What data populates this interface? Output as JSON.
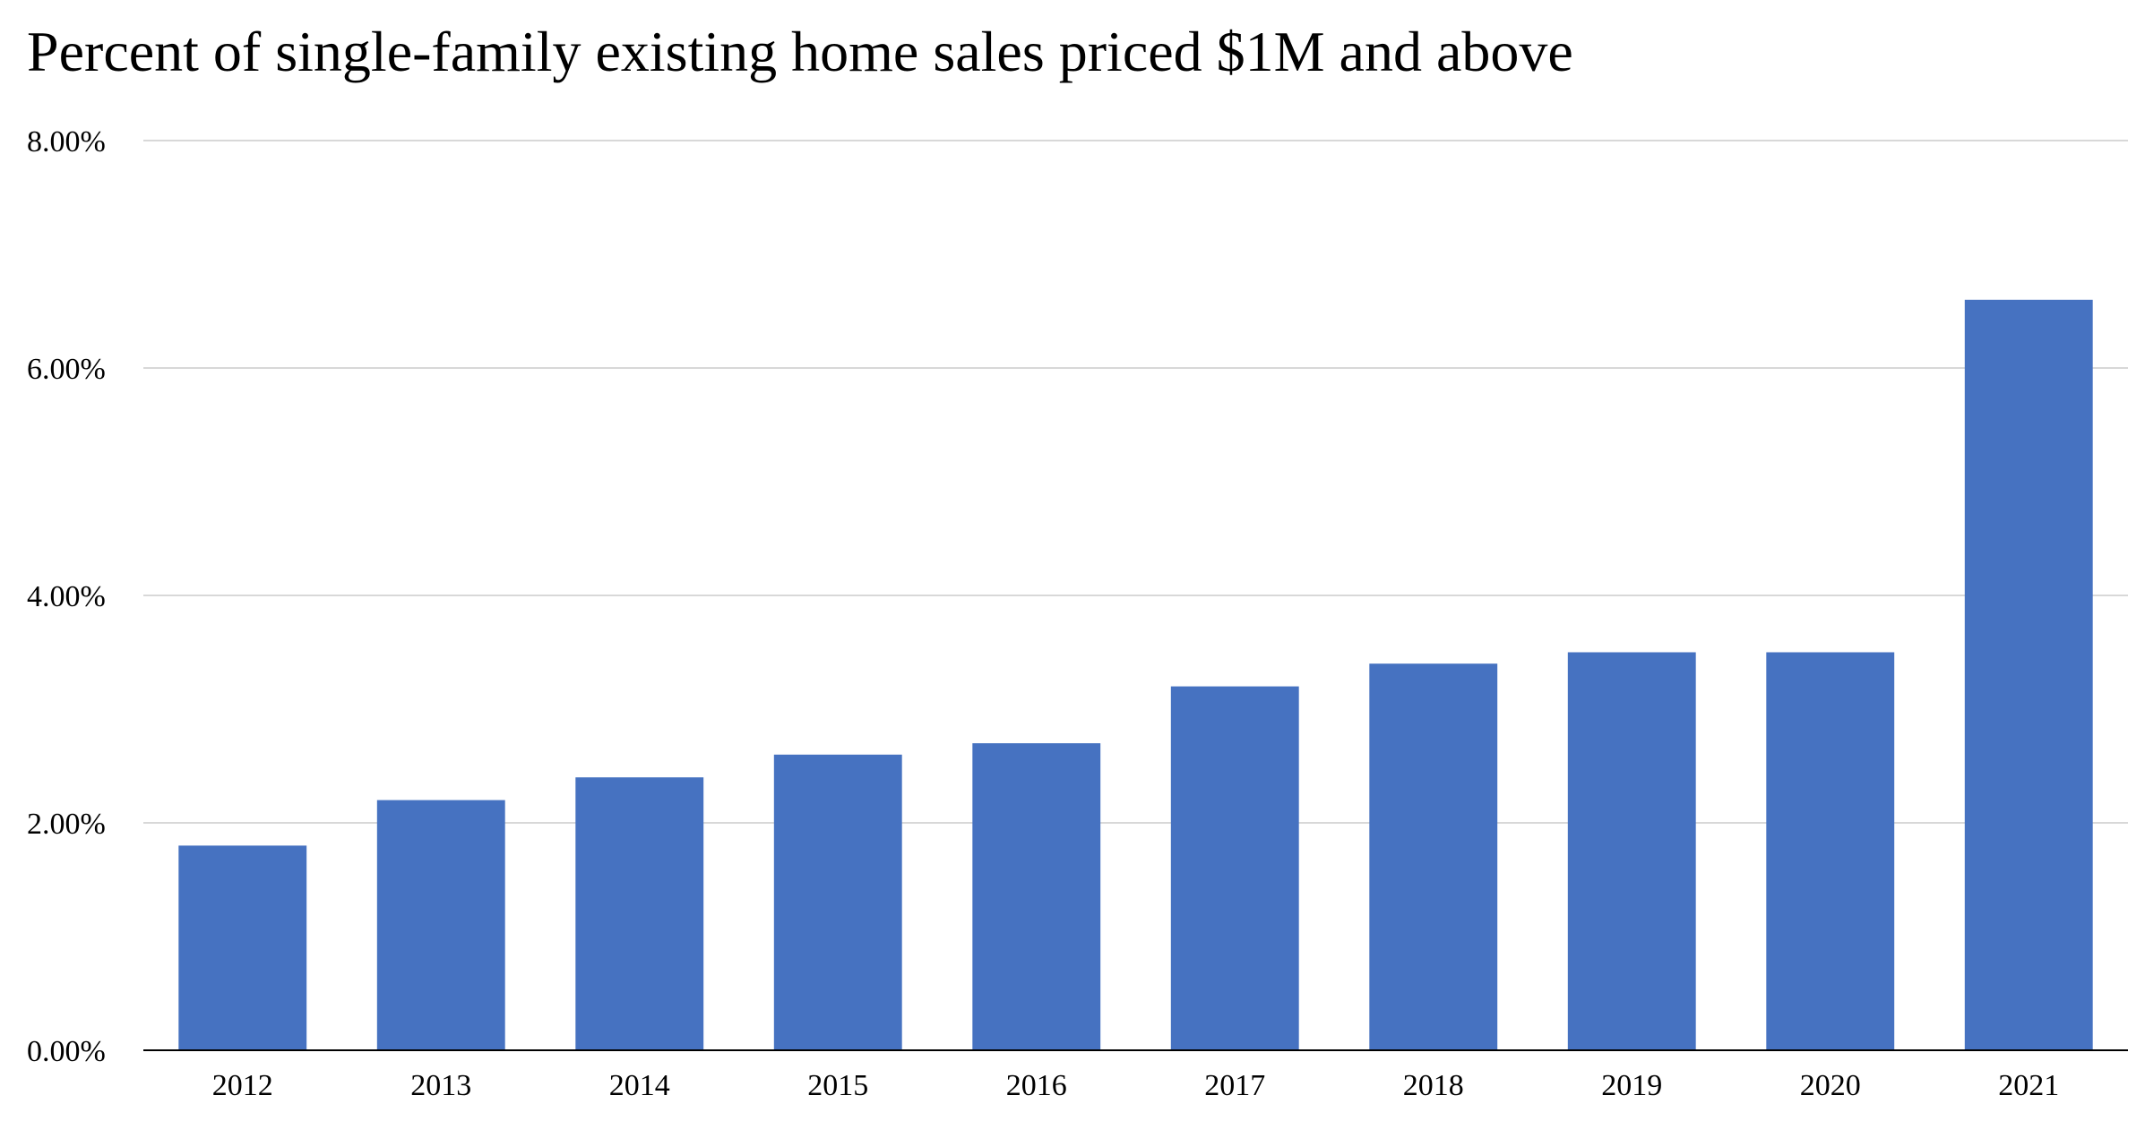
{
  "chart_data": {
    "type": "bar",
    "title": "Percent of single-family existing home sales priced $1M and above",
    "xlabel": "",
    "ylabel": "",
    "categories": [
      "2012",
      "2013",
      "2014",
      "2015",
      "2016",
      "2017",
      "2018",
      "2019",
      "2020",
      "2021"
    ],
    "values": [
      1.8,
      2.2,
      2.4,
      2.6,
      2.7,
      3.2,
      3.4,
      3.5,
      3.5,
      6.6
    ],
    "value_unit": "percent",
    "ylim": [
      0,
      8
    ],
    "yticks": [
      0,
      2,
      4,
      6,
      8
    ],
    "ytick_labels": [
      "0.00%",
      "2.00%",
      "4.00%",
      "6.00%",
      "8.00%"
    ],
    "grid": "horizontal",
    "legend": "none",
    "colors": {
      "bar": "#4672C1",
      "grid": "#cccccc",
      "axis": "#000000"
    }
  }
}
